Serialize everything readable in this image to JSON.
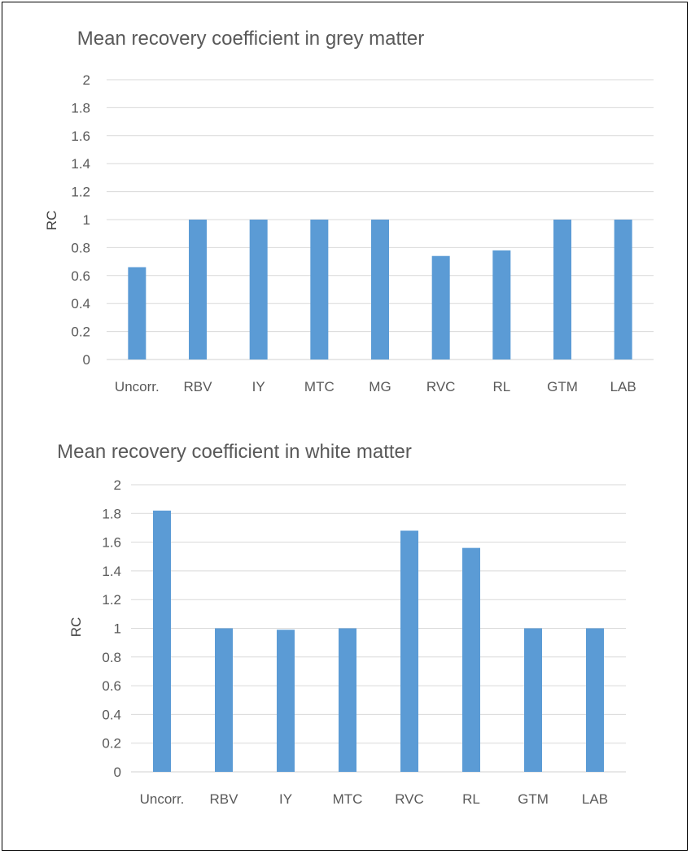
{
  "colors": {
    "bar": "#5b9bd5",
    "grid": "#d9d9d9",
    "text": "#595959",
    "border": "#000000"
  },
  "chart_data": [
    {
      "type": "bar",
      "title": "Mean recovery coefficient in grey matter",
      "xlabel": "",
      "ylabel": "RC",
      "ylim": [
        0,
        2
      ],
      "ytick_step": 0.2,
      "yticks": [
        "0",
        "0.2",
        "0.4",
        "0.6",
        "0.8",
        "1",
        "1.2",
        "1.4",
        "1.6",
        "1.8",
        "2"
      ],
      "grid": true,
      "legend": "none",
      "categories": [
        "Uncorr.",
        "RBV",
        "IY",
        "MTC",
        "MG",
        "RVC",
        "RL",
        "GTM",
        "LAB"
      ],
      "values": [
        0.66,
        1.0,
        1.0,
        1.0,
        1.0,
        0.74,
        0.78,
        1.0,
        1.0
      ]
    },
    {
      "type": "bar",
      "title": "Mean recovery coefficient in white matter",
      "xlabel": "",
      "ylabel": "RC",
      "ylim": [
        0,
        2
      ],
      "ytick_step": 0.2,
      "yticks": [
        "0",
        "0.2",
        "0.4",
        "0.6",
        "0.8",
        "1",
        "1.2",
        "1.4",
        "1.6",
        "1.8",
        "2"
      ],
      "grid": true,
      "legend": "none",
      "categories": [
        "Uncorr.",
        "RBV",
        "IY",
        "MTC",
        "RVC",
        "RL",
        "GTM",
        "LAB"
      ],
      "values": [
        1.82,
        1.0,
        0.99,
        1.0,
        1.68,
        1.56,
        1.0,
        1.0
      ]
    }
  ]
}
